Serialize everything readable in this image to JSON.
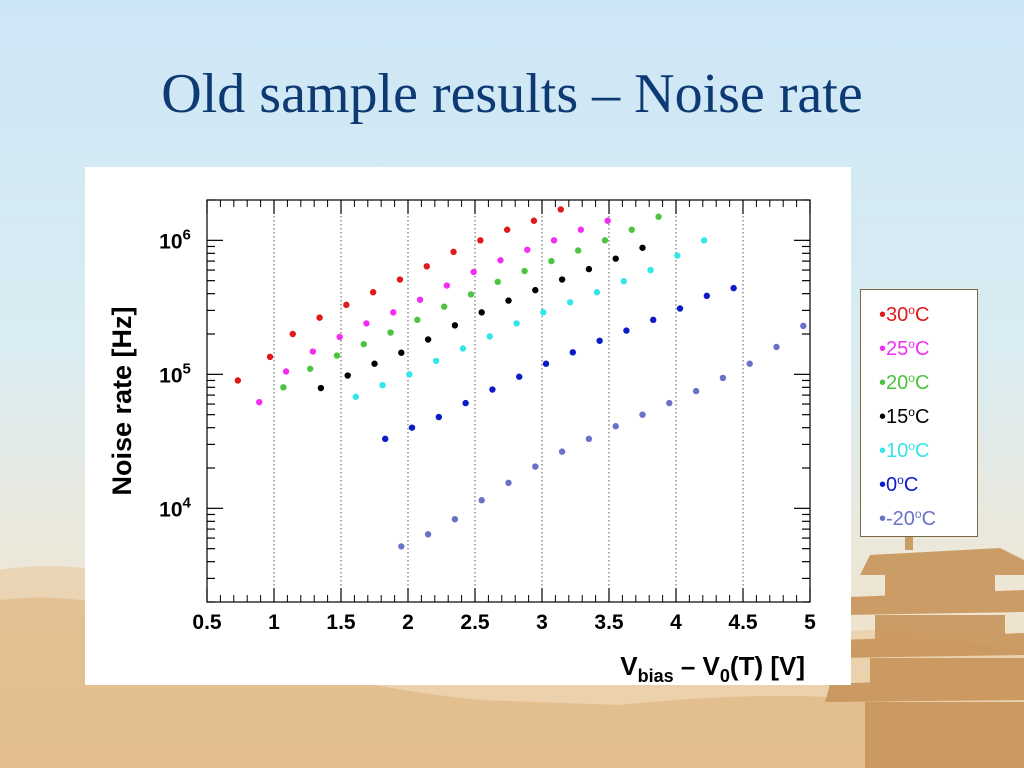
{
  "slide": {
    "title": "Old sample results – Noise rate"
  },
  "colors": {
    "30C": "#e01919",
    "25C": "#f22ef2",
    "20C": "#4cc43f",
    "15C": "#000000",
    "10C": "#33e6ea",
    "0C": "#0a1cc8",
    "-20C": "#6a72c8"
  },
  "legend": {
    "entries": [
      {
        "bullet": "•",
        "value": "30",
        "sup": "o",
        "unit": "C",
        "color": "#e01919"
      },
      {
        "bullet": "•",
        "value": "25",
        "sup": "o",
        "unit": "C",
        "color": "#f22ef2"
      },
      {
        "bullet": "•",
        "value": "20",
        "sup": "o",
        "unit": "C",
        "color": "#4cc43f"
      },
      {
        "bullet": "•",
        "value": "15",
        "sup": "o",
        "unit": "C",
        "color": "#000000"
      },
      {
        "bullet": "•",
        "value": "10",
        "sup": "o",
        "unit": "C",
        "color": "#33e6ea"
      },
      {
        "bullet": "•",
        "value": "0",
        "sup": "o",
        "unit": "C",
        "color": "#0a1cc8"
      },
      {
        "bullet": "•",
        "value": "-20",
        "sup": "o",
        "unit": "C",
        "color": "#6a72c8"
      }
    ]
  },
  "chart_data": {
    "type": "scatter",
    "title": "",
    "xlabel": {
      "main": "V",
      "sub1": "bias",
      "mid": " – V",
      "sub2": "0",
      "tail": "(T) [V]"
    },
    "ylabel": "Noise rate [Hz]",
    "xlim": [
      0.5,
      5
    ],
    "ylim": [
      2000,
      2000000
    ],
    "yscale": "log",
    "grid": "vertical dotted at major x ticks",
    "x_ticks": [
      "0.5",
      "1",
      "1.5",
      "2",
      "2.5",
      "3",
      "3.5",
      "4",
      "4.5",
      "5"
    ],
    "y_ticks": [
      {
        "base": "10",
        "exp": "4",
        "value": 10000
      },
      {
        "base": "10",
        "exp": "5",
        "value": 100000
      },
      {
        "base": "10",
        "exp": "6",
        "value": 1000000
      }
    ],
    "series": [
      {
        "name": "30oC",
        "color": "#e01919",
        "points": [
          [
            0.73,
            90000
          ],
          [
            0.97,
            135000
          ],
          [
            1.14,
            200000
          ],
          [
            1.34,
            265000
          ],
          [
            1.54,
            330000
          ],
          [
            1.74,
            410000
          ],
          [
            1.94,
            510000
          ],
          [
            2.14,
            640000
          ],
          [
            2.34,
            820000
          ],
          [
            2.54,
            1000000
          ],
          [
            2.74,
            1200000
          ],
          [
            2.94,
            1400000
          ],
          [
            3.14,
            1700000
          ]
        ]
      },
      {
        "name": "25oC",
        "color": "#f22ef2",
        "points": [
          [
            0.89,
            62000
          ],
          [
            1.09,
            105000
          ],
          [
            1.29,
            148000
          ],
          [
            1.49,
            190000
          ],
          [
            1.69,
            240000
          ],
          [
            1.89,
            290000
          ],
          [
            2.09,
            360000
          ],
          [
            2.29,
            460000
          ],
          [
            2.49,
            580000
          ],
          [
            2.69,
            710000
          ],
          [
            2.89,
            850000
          ],
          [
            3.09,
            1000000
          ],
          [
            3.29,
            1200000
          ],
          [
            3.49,
            1400000
          ]
        ]
      },
      {
        "name": "20oC",
        "color": "#4cc43f",
        "points": [
          [
            1.07,
            80000
          ],
          [
            1.27,
            110000
          ],
          [
            1.47,
            138000
          ],
          [
            1.67,
            168000
          ],
          [
            1.87,
            205000
          ],
          [
            2.07,
            255000
          ],
          [
            2.27,
            320000
          ],
          [
            2.47,
            395000
          ],
          [
            2.67,
            490000
          ],
          [
            2.87,
            590000
          ],
          [
            3.07,
            700000
          ],
          [
            3.27,
            840000
          ],
          [
            3.47,
            1000000
          ],
          [
            3.67,
            1200000
          ],
          [
            3.87,
            1500000
          ]
        ]
      },
      {
        "name": "15oC",
        "color": "#000000",
        "points": [
          [
            1.35,
            79000
          ],
          [
            1.55,
            98000
          ],
          [
            1.75,
            120000
          ],
          [
            1.95,
            145000
          ],
          [
            2.15,
            182000
          ],
          [
            2.35,
            232000
          ],
          [
            2.55,
            290000
          ],
          [
            2.75,
            355000
          ],
          [
            2.95,
            425000
          ],
          [
            3.15,
            510000
          ],
          [
            3.35,
            610000
          ],
          [
            3.55,
            730000
          ],
          [
            3.75,
            880000
          ]
        ]
      },
      {
        "name": "10oC",
        "color": "#33e6ea",
        "points": [
          [
            1.61,
            68000
          ],
          [
            1.81,
            83000
          ],
          [
            2.01,
            100000
          ],
          [
            2.21,
            126000
          ],
          [
            2.41,
            156000
          ],
          [
            2.61,
            192000
          ],
          [
            2.81,
            240000
          ],
          [
            3.01,
            290000
          ],
          [
            3.21,
            345000
          ],
          [
            3.41,
            410000
          ],
          [
            3.61,
            495000
          ],
          [
            3.81,
            600000
          ],
          [
            4.01,
            770000
          ],
          [
            4.21,
            1000000
          ]
        ]
      },
      {
        "name": "0oC",
        "color": "#0a1cc8",
        "points": [
          [
            1.83,
            33000
          ],
          [
            2.03,
            40000
          ],
          [
            2.23,
            48000
          ],
          [
            2.43,
            61000
          ],
          [
            2.63,
            77000
          ],
          [
            2.83,
            96000
          ],
          [
            3.03,
            120000
          ],
          [
            3.23,
            146000
          ],
          [
            3.43,
            178000
          ],
          [
            3.63,
            212000
          ],
          [
            3.83,
            255000
          ],
          [
            4.03,
            310000
          ],
          [
            4.23,
            385000
          ],
          [
            4.43,
            440000
          ]
        ]
      },
      {
        "name": "-20oC",
        "color": "#6a72c8",
        "points": [
          [
            1.95,
            5200
          ],
          [
            2.15,
            6400
          ],
          [
            2.35,
            8300
          ],
          [
            2.55,
            11500
          ],
          [
            2.75,
            15500
          ],
          [
            2.95,
            20500
          ],
          [
            3.15,
            26500
          ],
          [
            3.35,
            33000
          ],
          [
            3.55,
            41000
          ],
          [
            3.75,
            50000
          ],
          [
            3.95,
            61000
          ],
          [
            4.15,
            75000
          ],
          [
            4.35,
            94000
          ],
          [
            4.55,
            120000
          ],
          [
            4.75,
            160000
          ],
          [
            4.95,
            230000
          ]
        ]
      }
    ]
  }
}
